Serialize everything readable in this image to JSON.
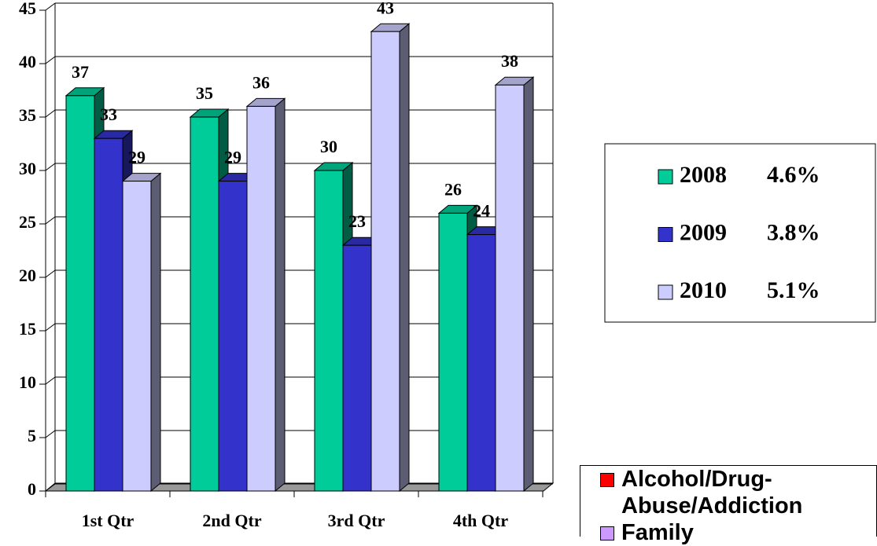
{
  "chart_data": {
    "type": "bar3d",
    "categories": [
      "1st Qtr",
      "2nd Qtr",
      "3rd Qtr",
      "4th Qtr"
    ],
    "series": [
      {
        "name": "2008",
        "legend_note": "4.6%",
        "color": "#00cc99",
        "values": [
          37,
          35,
          30,
          26
        ]
      },
      {
        "name": "2009",
        "legend_note": "3.8%",
        "color": "#3333cc",
        "values": [
          33,
          29,
          23,
          24
        ]
      },
      {
        "name": "2010",
        "legend_note": "5.1%",
        "color": "#ccccff",
        "values": [
          29,
          36,
          43,
          38
        ]
      }
    ],
    "ylim": [
      0,
      45
    ],
    "yticks": [
      0,
      5,
      10,
      15,
      20,
      25,
      30,
      35,
      40,
      45
    ],
    "grid": true,
    "second_legend": [
      {
        "name": "Alcohol/Drug-Abuse/Addiction",
        "color": "#ff0000"
      },
      {
        "name": "Family",
        "color": "#cc99ff"
      }
    ]
  }
}
